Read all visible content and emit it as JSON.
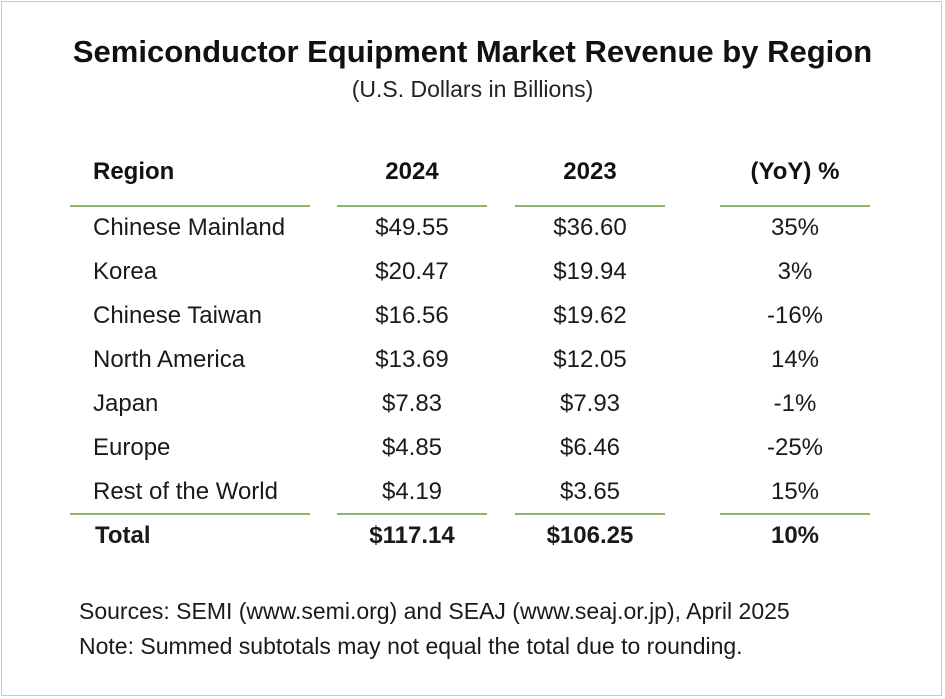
{
  "chart_data": {
    "type": "table",
    "title": "Semiconductor Equipment Market Revenue by Region",
    "subtitle": "(U.S. Dollars in Billions)",
    "columns": [
      "Region",
      "2024",
      "2023",
      "(YoY) %"
    ],
    "rows": [
      {
        "region": "Chinese Mainland",
        "y2024": "$49.55",
        "y2023": "$36.60",
        "yoy": "35%"
      },
      {
        "region": "Korea",
        "y2024": "$20.47",
        "y2023": "$19.94",
        "yoy": "3%"
      },
      {
        "region": "Chinese Taiwan",
        "y2024": "$16.56",
        "y2023": "$19.62",
        "yoy": "-16%"
      },
      {
        "region": "North America",
        "y2024": "$13.69",
        "y2023": "$12.05",
        "yoy": "14%"
      },
      {
        "region": "Japan",
        "y2024": "$7.83",
        "y2023": "$7.93",
        "yoy": "-1%"
      },
      {
        "region": "Europe",
        "y2024": "$4.85",
        "y2023": "$6.46",
        "yoy": "-25%"
      },
      {
        "region": "Rest of the World",
        "y2024": "$4.19",
        "y2023": "$3.65",
        "yoy": "15%"
      }
    ],
    "total": {
      "region": "Total",
      "y2024": "$117.14",
      "y2023": "$106.25",
      "yoy": "10%"
    },
    "rule_color": "#8db36c"
  },
  "footer": {
    "sources": "Sources: SEMI (www.semi.org) and SEAJ (www.seaj.or.jp), April 2025",
    "note": "Note: Summed subtotals may not equal the total due to rounding."
  }
}
